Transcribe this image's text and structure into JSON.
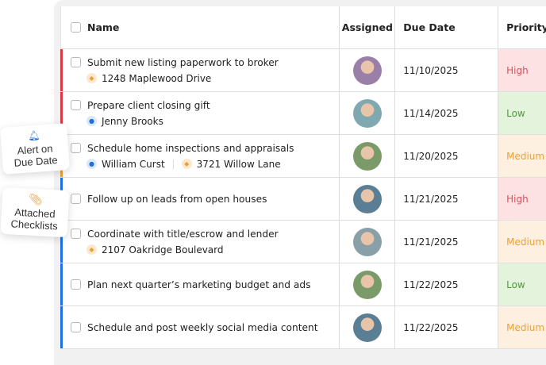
{
  "header": {
    "select_all": "",
    "name": "Name",
    "assigned": "Assigned",
    "due_date": "Due Date",
    "priority": "Priority"
  },
  "rows": [
    {
      "title": "Submit new listing paperwork to broker",
      "bar": "#d83a45",
      "sub": [
        {
          "icon": "paperclip-icon",
          "text": "1248 Maplewood Drive"
        }
      ],
      "avatar": "#9a7fa8",
      "due": "11/10/2025",
      "priority": "High"
    },
    {
      "title": "Prepare client closing gift",
      "bar": "#d83a45",
      "sub": [
        {
          "icon": "user-icon",
          "text": "Jenny Brooks"
        }
      ],
      "avatar": "#7fa8b0",
      "due": "11/14/2025",
      "priority": "Low"
    },
    {
      "title": "Schedule home inspections and appraisals",
      "bar": "#e8a23c",
      "sub": [
        {
          "icon": "user-icon",
          "text": "William Curst"
        },
        {
          "icon": "paperclip-icon",
          "text": "3721 Willow Lane"
        }
      ],
      "avatar": "#7a9a6a",
      "due": "11/20/2025",
      "priority": "Medium"
    },
    {
      "title": "Follow up on leads from open houses",
      "bar": "#1e6fe0",
      "sub": [],
      "avatar": "#5a7f95",
      "due": "11/21/2025",
      "priority": "High"
    },
    {
      "title": "Coordinate with title/escrow and lender",
      "bar": "#1e6fe0",
      "sub": [
        {
          "icon": "paperclip-icon",
          "text": "2107 Oakridge Boulevard"
        }
      ],
      "avatar": "#8aa0a8",
      "due": "11/21/2025",
      "priority": "Medium"
    },
    {
      "title": "Plan next quarter’s marketing budget and ads",
      "bar": "#1e6fe0",
      "sub": [],
      "avatar": "#7a9a6a",
      "due": "11/22/2025",
      "priority": "Low"
    },
    {
      "title": "Schedule and post weekly social media content",
      "bar": "#1e6fe0",
      "sub": [],
      "avatar": "#5a7f95",
      "due": "11/22/2025",
      "priority": "Medium"
    }
  ],
  "priority_styles": {
    "High": {
      "bg": "#fde2e4",
      "fg": "#d9505b"
    },
    "Low": {
      "bg": "#e3f3dc",
      "fg": "#4e9a3a"
    },
    "Medium": {
      "bg": "#fdf0e0",
      "fg": "#e8a23c"
    }
  },
  "badges": {
    "alert": "Alert on Due Date",
    "checklists": "Attached Checklists"
  }
}
